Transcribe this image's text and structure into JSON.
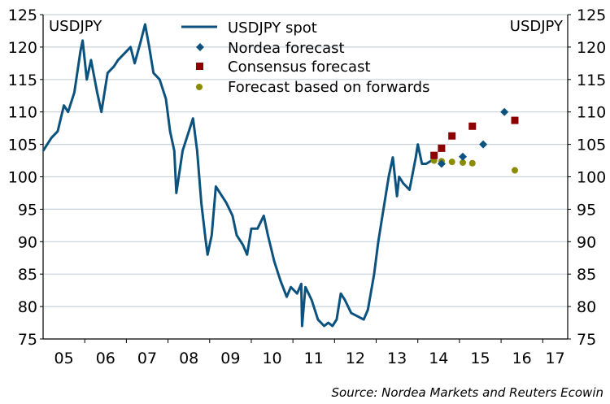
{
  "chart_data": {
    "type": "line",
    "title": "",
    "left_axis_label": "USDJPY",
    "right_axis_label": "USDJPY",
    "xlabel": "",
    "ylabel": "USDJPY",
    "ylim": [
      75,
      125
    ],
    "yticks": [
      75,
      80,
      85,
      90,
      95,
      100,
      105,
      110,
      115,
      120,
      125
    ],
    "xlim": [
      2005.0,
      2017.6
    ],
    "xticks": [
      2005,
      2006,
      2007,
      2008,
      2009,
      2010,
      2011,
      2012,
      2013,
      2014,
      2015,
      2016,
      2017
    ],
    "xtick_labels": [
      "05",
      "06",
      "07",
      "08",
      "09",
      "10",
      "11",
      "12",
      "13",
      "14",
      "15",
      "16",
      "17"
    ],
    "grid": "horizontal",
    "legend_position": "top-center",
    "colors": {
      "spot": "#0b527f",
      "nordea": "#0b527f",
      "consensus": "#8b0000",
      "forwards": "#8c8c00",
      "grid": "#c8d3dc",
      "axis": "#000000"
    },
    "series": [
      {
        "name": "USDJPY spot",
        "kind": "line",
        "x": [
          2005.0,
          2005.1,
          2005.2,
          2005.35,
          2005.5,
          2005.6,
          2005.75,
          2005.9,
          2005.95,
          2006.05,
          2006.15,
          2006.3,
          2006.4,
          2006.55,
          2006.7,
          2006.8,
          2006.95,
          2007.1,
          2007.2,
          2007.35,
          2007.45,
          2007.55,
          2007.65,
          2007.8,
          2007.95,
          2008.05,
          2008.15,
          2008.2,
          2008.35,
          2008.5,
          2008.6,
          2008.7,
          2008.8,
          2008.9,
          2008.95,
          2009.05,
          2009.15,
          2009.3,
          2009.4,
          2009.55,
          2009.65,
          2009.8,
          2009.9,
          2010.0,
          2010.15,
          2010.3,
          2010.4,
          2010.55,
          2010.7,
          2010.85,
          2010.95,
          2011.1,
          2011.2,
          2011.22,
          2011.3,
          2011.45,
          2011.6,
          2011.75,
          2011.85,
          2011.95,
          2012.05,
          2012.15,
          2012.25,
          2012.4,
          2012.55,
          2012.7,
          2012.8,
          2012.95,
          2013.05,
          2013.15,
          2013.3,
          2013.4,
          2013.5,
          2013.55,
          2013.65,
          2013.8,
          2013.95,
          2014.0,
          2014.1,
          2014.2,
          2014.33
        ],
        "values": [
          104,
          105,
          106,
          107,
          111,
          110,
          113,
          119.5,
          121,
          115,
          118,
          113,
          110,
          116,
          117,
          118,
          119,
          120,
          117.5,
          121,
          123.5,
          120,
          116,
          115,
          112,
          107,
          104,
          97.5,
          104,
          107,
          109,
          104,
          96,
          90.5,
          88,
          91,
          98.5,
          97,
          96,
          94,
          91,
          89.5,
          88,
          92,
          92,
          94,
          91,
          87,
          84,
          81.5,
          83,
          82,
          83.5,
          77,
          83,
          81,
          78,
          77,
          77.5,
          77,
          78,
          82,
          81,
          79,
          78.5,
          78,
          79.5,
          85,
          90,
          94,
          100,
          103,
          97,
          100,
          99,
          98,
          103,
          105,
          102,
          102,
          102.5
        ]
      },
      {
        "name": "Nordea forecast",
        "kind": "diamond",
        "x": [
          2014.57,
          2015.08,
          2015.57,
          2016.08
        ],
        "values": [
          102.0,
          103.1,
          105.0,
          110.0
        ]
      },
      {
        "name": "Consensus forecast",
        "kind": "square",
        "x": [
          2014.39,
          2014.57,
          2014.82,
          2015.31,
          2016.33
        ],
        "values": [
          103.3,
          104.4,
          106.3,
          107.8,
          108.7
        ]
      },
      {
        "name": "Forecast based on forwards",
        "kind": "circle",
        "x": [
          2014.39,
          2014.57,
          2014.82,
          2015.08,
          2015.31,
          2016.33
        ],
        "values": [
          102.5,
          102.4,
          102.3,
          102.2,
          102.1,
          101.0
        ]
      }
    ],
    "source": "Source: Nordea Markets and Reuters Ecowin"
  }
}
